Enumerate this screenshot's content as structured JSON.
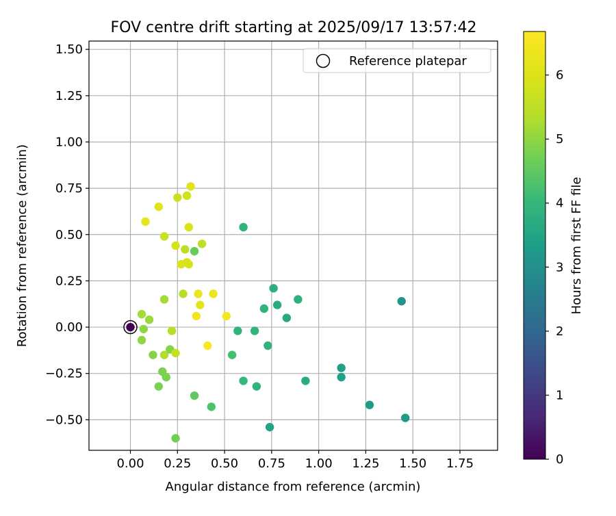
{
  "chart_data": {
    "type": "scatter",
    "title": "FOV centre drift starting at 2025/09/17 13:57:42",
    "xlabel": "Angular distance from reference (arcmin)",
    "ylabel": "Rotation from reference (arcmin)",
    "xlim": [
      -0.22,
      1.95
    ],
    "ylim": [
      -0.665,
      1.545
    ],
    "xticks": [
      0.0,
      0.25,
      0.5,
      0.75,
      1.0,
      1.25,
      1.5,
      1.75
    ],
    "xtick_labels": [
      "0.00",
      "0.25",
      "0.50",
      "0.75",
      "1.00",
      "1.25",
      "1.50",
      "1.75"
    ],
    "yticks": [
      -0.5,
      -0.25,
      0.0,
      0.25,
      0.5,
      0.75,
      1.0,
      1.25,
      1.5
    ],
    "ytick_labels": [
      "−0.50",
      "−0.25",
      "0.00",
      "0.25",
      "0.50",
      "0.75",
      "1.00",
      "1.25",
      "1.50"
    ],
    "grid": true,
    "legend": {
      "position": "top-right",
      "label": "Reference platepar"
    },
    "colorbar": {
      "label": "Hours from first FF file",
      "colormap": "viridis",
      "range": [
        0,
        6.68
      ],
      "ticks": [
        0,
        1,
        2,
        3,
        4,
        5,
        6
      ],
      "tick_labels": [
        "0",
        "1",
        "2",
        "3",
        "4",
        "5",
        "6"
      ]
    },
    "reference_point": {
      "x": 0.0,
      "y": 0.0,
      "hours": 0.0
    },
    "points": [
      {
        "x": 1.44,
        "y": 0.14,
        "hours": 3.1
      },
      {
        "x": 1.46,
        "y": -0.49,
        "hours": 3.3
      },
      {
        "x": 1.27,
        "y": -0.42,
        "hours": 3.3
      },
      {
        "x": 1.12,
        "y": -0.22,
        "hours": 3.4
      },
      {
        "x": 1.12,
        "y": -0.27,
        "hours": 3.4
      },
      {
        "x": 0.74,
        "y": -0.54,
        "hours": 3.5
      },
      {
        "x": 0.93,
        "y": -0.29,
        "hours": 3.7
      },
      {
        "x": 0.89,
        "y": 0.15,
        "hours": 3.8
      },
      {
        "x": 0.83,
        "y": 0.05,
        "hours": 3.6
      },
      {
        "x": 0.78,
        "y": 0.12,
        "hours": 3.7
      },
      {
        "x": 0.76,
        "y": 0.21,
        "hours": 3.8
      },
      {
        "x": 0.71,
        "y": 0.1,
        "hours": 3.9
      },
      {
        "x": 0.73,
        "y": -0.1,
        "hours": 3.9
      },
      {
        "x": 0.67,
        "y": -0.32,
        "hours": 3.9
      },
      {
        "x": 0.66,
        "y": -0.02,
        "hours": 3.9
      },
      {
        "x": 0.6,
        "y": -0.29,
        "hours": 4.0
      },
      {
        "x": 0.6,
        "y": 0.54,
        "hours": 3.9
      },
      {
        "x": 0.57,
        "y": -0.02,
        "hours": 3.9
      },
      {
        "x": 0.54,
        "y": -0.15,
        "hours": 4.2
      },
      {
        "x": 0.43,
        "y": -0.43,
        "hours": 4.3
      },
      {
        "x": 0.34,
        "y": -0.37,
        "hours": 4.5
      },
      {
        "x": 0.34,
        "y": 0.41,
        "hours": 4.6
      },
      {
        "x": 0.24,
        "y": -0.6,
        "hours": 4.7
      },
      {
        "x": 0.17,
        "y": -0.24,
        "hours": 4.8
      },
      {
        "x": 0.19,
        "y": -0.27,
        "hours": 4.8
      },
      {
        "x": 0.15,
        "y": -0.32,
        "hours": 4.8
      },
      {
        "x": 0.12,
        "y": -0.15,
        "hours": 4.9
      },
      {
        "x": 0.21,
        "y": -0.12,
        "hours": 4.9
      },
      {
        "x": 0.06,
        "y": -0.07,
        "hours": 5.0
      },
      {
        "x": 0.07,
        "y": -0.01,
        "hours": 5.0
      },
      {
        "x": 0.1,
        "y": 0.04,
        "hours": 5.1
      },
      {
        "x": 0.06,
        "y": 0.07,
        "hours": 5.2
      },
      {
        "x": 0.18,
        "y": 0.15,
        "hours": 5.2
      },
      {
        "x": 0.18,
        "y": -0.15,
        "hours": 5.3
      },
      {
        "x": 0.22,
        "y": -0.02,
        "hours": 5.4
      },
      {
        "x": 0.24,
        "y": -0.14,
        "hours": 5.6
      },
      {
        "x": 0.28,
        "y": 0.18,
        "hours": 5.4
      },
      {
        "x": 0.29,
        "y": 0.42,
        "hours": 5.5
      },
      {
        "x": 0.38,
        "y": 0.45,
        "hours": 5.5
      },
      {
        "x": 0.18,
        "y": 0.49,
        "hours": 5.7
      },
      {
        "x": 0.25,
        "y": 0.7,
        "hours": 5.7
      },
      {
        "x": 0.3,
        "y": 0.71,
        "hours": 5.8
      },
      {
        "x": 0.24,
        "y": 0.44,
        "hours": 5.9
      },
      {
        "x": 0.3,
        "y": 0.35,
        "hours": 5.9
      },
      {
        "x": 0.27,
        "y": 0.34,
        "hours": 6.0
      },
      {
        "x": 0.31,
        "y": 0.34,
        "hours": 5.9
      },
      {
        "x": 0.31,
        "y": 0.54,
        "hours": 6.0
      },
      {
        "x": 0.15,
        "y": 0.65,
        "hours": 6.1
      },
      {
        "x": 0.32,
        "y": 0.76,
        "hours": 6.1
      },
      {
        "x": 0.08,
        "y": 0.57,
        "hours": 6.2
      },
      {
        "x": 0.37,
        "y": 0.12,
        "hours": 6.2
      },
      {
        "x": 0.36,
        "y": 0.18,
        "hours": 6.3
      },
      {
        "x": 0.44,
        "y": 0.18,
        "hours": 6.3
      },
      {
        "x": 0.35,
        "y": 0.06,
        "hours": 6.4
      },
      {
        "x": 0.51,
        "y": 0.06,
        "hours": 6.5
      },
      {
        "x": 0.41,
        "y": -0.1,
        "hours": 6.6
      }
    ]
  }
}
